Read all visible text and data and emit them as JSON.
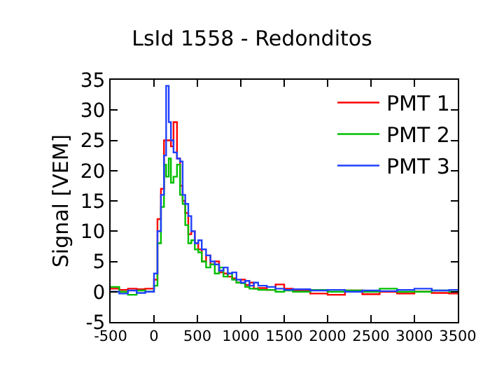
{
  "chart_data": {
    "type": "step",
    "title": "LsId 1558 - Redonditos",
    "ylabel": "Signal [VEM]",
    "x": [
      -500,
      -400,
      -300,
      -200,
      -100,
      0,
      40,
      80,
      115,
      140,
      170,
      195,
      225,
      265,
      300,
      330,
      360,
      395,
      430,
      470,
      510,
      550,
      600,
      650,
      700,
      750,
      800,
      850,
      900,
      950,
      1000,
      1050,
      1100,
      1150,
      1200,
      1300,
      1400,
      1500,
      1600,
      1800,
      2000,
      2200,
      2400,
      2600,
      2800,
      3000,
      3200,
      3400,
      3500
    ],
    "series": [
      {
        "name": "PMT 1",
        "color": "#ff0000",
        "values": [
          0.5,
          0.3,
          0.5,
          0.4,
          0.5,
          2,
          12,
          17,
          25,
          25,
          25,
          24,
          28,
          22,
          17.5,
          15,
          13,
          9.5,
          10,
          8,
          7,
          5,
          6,
          4.5,
          5,
          3.2,
          3,
          2.5,
          2.2,
          1.5,
          2,
          1.1,
          1.5,
          0.5,
          0.6,
          0.3,
          1.2,
          0.5,
          0.2,
          -0.3,
          -0.5,
          0.2,
          -0.4,
          0,
          -0.3,
          0,
          -0.2,
          -0.3,
          -0.3
        ]
      },
      {
        "name": "PMT 2",
        "color": "#00c000",
        "values": [
          0.8,
          0,
          -0.5,
          0.2,
          0,
          1,
          8,
          14,
          21,
          19,
          22,
          18,
          19,
          21,
          16,
          14.5,
          11,
          8,
          8.5,
          7,
          6.5,
          5,
          4,
          4.5,
          3,
          4,
          2.5,
          3,
          2,
          1.5,
          1.4,
          0.8,
          0.5,
          0.5,
          0.3,
          0.3,
          0,
          0.2,
          0,
          0.3,
          0,
          0.2,
          0,
          0.5,
          0,
          0,
          0.2,
          0,
          0
        ]
      },
      {
        "name": "PMT 3",
        "color": "#2040ff",
        "values": [
          0,
          -0.3,
          0.2,
          -0.2,
          0,
          3,
          10,
          16,
          22.5,
          34,
          28,
          25,
          23,
          22,
          21.5,
          16,
          14.5,
          12.5,
          10,
          8,
          8.5,
          7,
          6,
          5,
          4.5,
          3.5,
          4,
          3,
          3.2,
          2,
          1.5,
          1.8,
          1,
          1.5,
          1,
          0.8,
          0.5,
          0.3,
          0.4,
          0.2,
          0.3,
          0,
          0.2,
          0.1,
          0.3,
          0.5,
          0.2,
          0.3,
          0.3
        ]
      }
    ],
    "xlim": [
      -500,
      3500
    ],
    "xticks": [
      -500,
      0,
      500,
      1000,
      1500,
      2000,
      2500,
      3000,
      3500
    ],
    "ylim": [
      -5,
      35
    ],
    "yticks": [
      -5,
      0,
      5,
      10,
      15,
      20,
      25,
      30,
      35
    ],
    "grid": false,
    "legend": "top right",
    "line_style": "solid"
  }
}
